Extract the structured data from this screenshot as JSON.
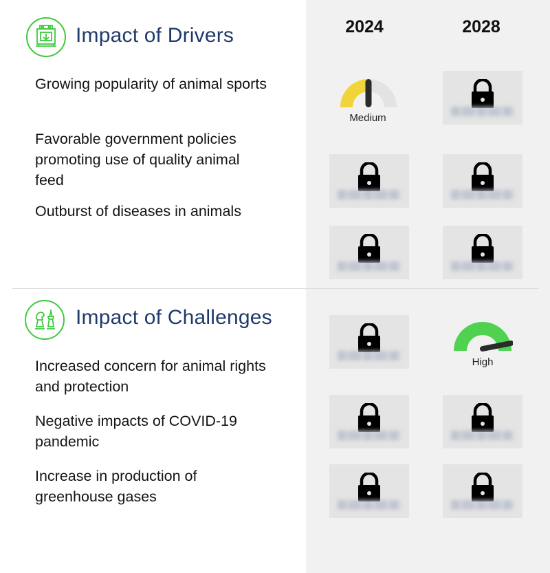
{
  "columns": {
    "year_1": "2024",
    "year_2": "2028"
  },
  "drivers": {
    "title": "Impact of Drivers",
    "icon": "machine-icon",
    "items": [
      {
        "label": "Growing popularity of animal sports",
        "y2024": "Medium",
        "y2028": "locked"
      },
      {
        "label": "Favorable government policies promoting use of quality animal feed",
        "y2024": "locked",
        "y2028": "locked"
      },
      {
        "label": "Outburst of diseases in animals",
        "y2024": "locked",
        "y2028": "locked"
      }
    ]
  },
  "challenges": {
    "title": "Impact of Challenges",
    "icon": "chess-pieces-icon",
    "items": [
      {
        "label": "Increased concern for animal rights and protection",
        "y2024": "locked",
        "y2028": "High"
      },
      {
        "label": "Negative impacts of COVID-19 pandemic",
        "y2024": "locked",
        "y2028": "locked"
      },
      {
        "label": "Increase in production of greenhouse gases",
        "y2024": "locked",
        "y2028": "locked"
      }
    ]
  },
  "colors": {
    "accent_green": "#3ec93e",
    "title_blue": "#1f3a6a",
    "medium_yellow": "#f0d43a",
    "high_green": "#4fd24f"
  }
}
